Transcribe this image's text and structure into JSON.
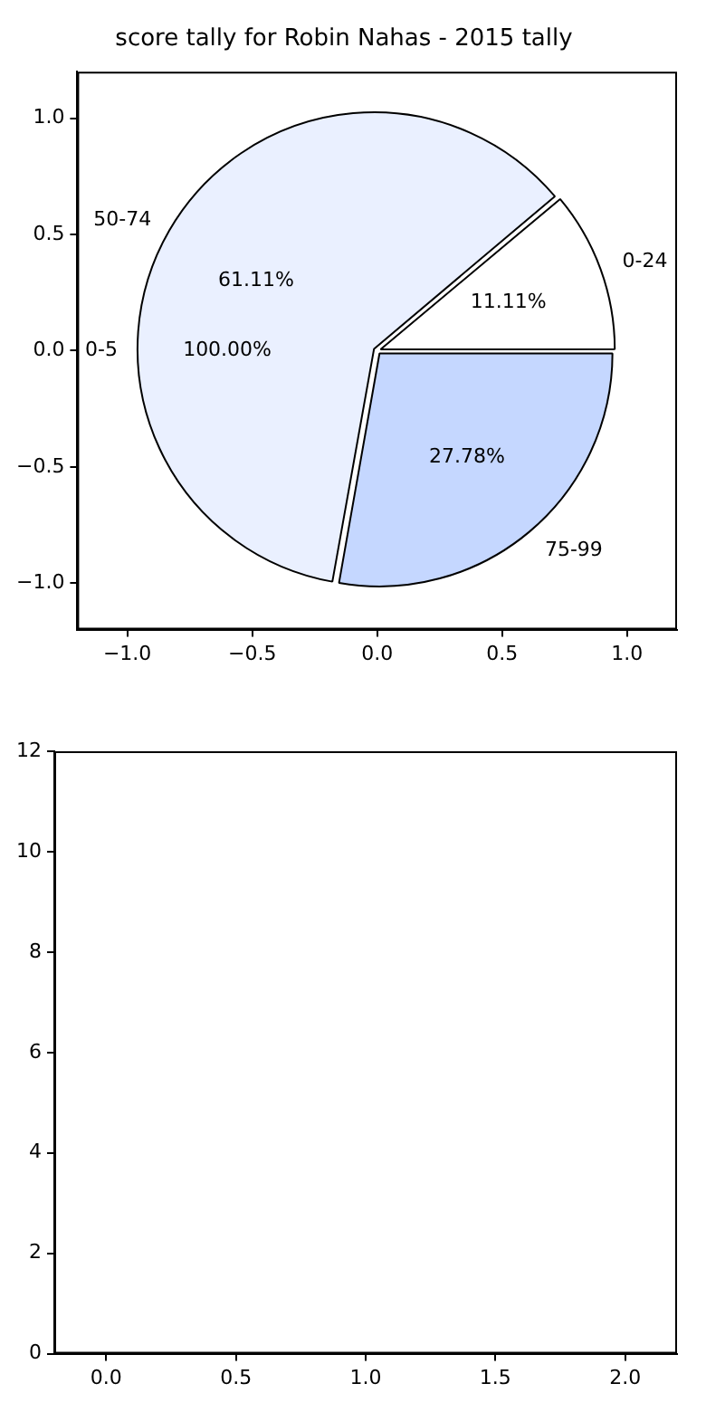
{
  "chart_data": [
    {
      "type": "scatter",
      "title": "score tally for Robin Nahas - 2015 tally",
      "xlim": [
        -1.2,
        1.2
      ],
      "ylim": [
        -1.2,
        1.2
      ],
      "xticks": [
        {
          "value": -1,
          "label": "−1.0"
        },
        {
          "value": -0.5,
          "label": "−0.5"
        },
        {
          "value": 0,
          "label": "0.0"
        },
        {
          "value": 0.5,
          "label": "0.5"
        },
        {
          "value": 1,
          "label": "1.0"
        }
      ],
      "yticks": [
        {
          "value": -1,
          "label": "−1.0"
        },
        {
          "value": -0.5,
          "label": "−0.5"
        },
        {
          "value": 0,
          "label": "0.0"
        },
        {
          "value": 0.5,
          "label": "0.5"
        },
        {
          "value": 1,
          "label": "1.0"
        }
      ],
      "annotations": [
        "0-5",
        "100.00%"
      ]
    },
    {
      "type": "pie",
      "categories": [
        "75-99",
        "50-74",
        "0-24"
      ],
      "values": [
        27.78,
        61.11,
        11.11
      ],
      "value_labels": [
        "27.78%",
        "61.11%",
        "11.11%"
      ],
      "colors": [
        "#c5d7ff",
        "#eaf0ff",
        "#ffffff"
      ]
    },
    {
      "type": "scatter",
      "xlim": [
        -0.2,
        2.2
      ],
      "ylim": [
        0,
        12
      ],
      "xticks": [
        {
          "value": 0,
          "label": "0.0"
        },
        {
          "value": 0.5,
          "label": "0.5"
        },
        {
          "value": 1,
          "label": "1.0"
        },
        {
          "value": 1.5,
          "label": "1.5"
        },
        {
          "value": 2,
          "label": "2.0"
        }
      ],
      "yticks": [
        0,
        2,
        4,
        6,
        8,
        10,
        12
      ]
    }
  ]
}
